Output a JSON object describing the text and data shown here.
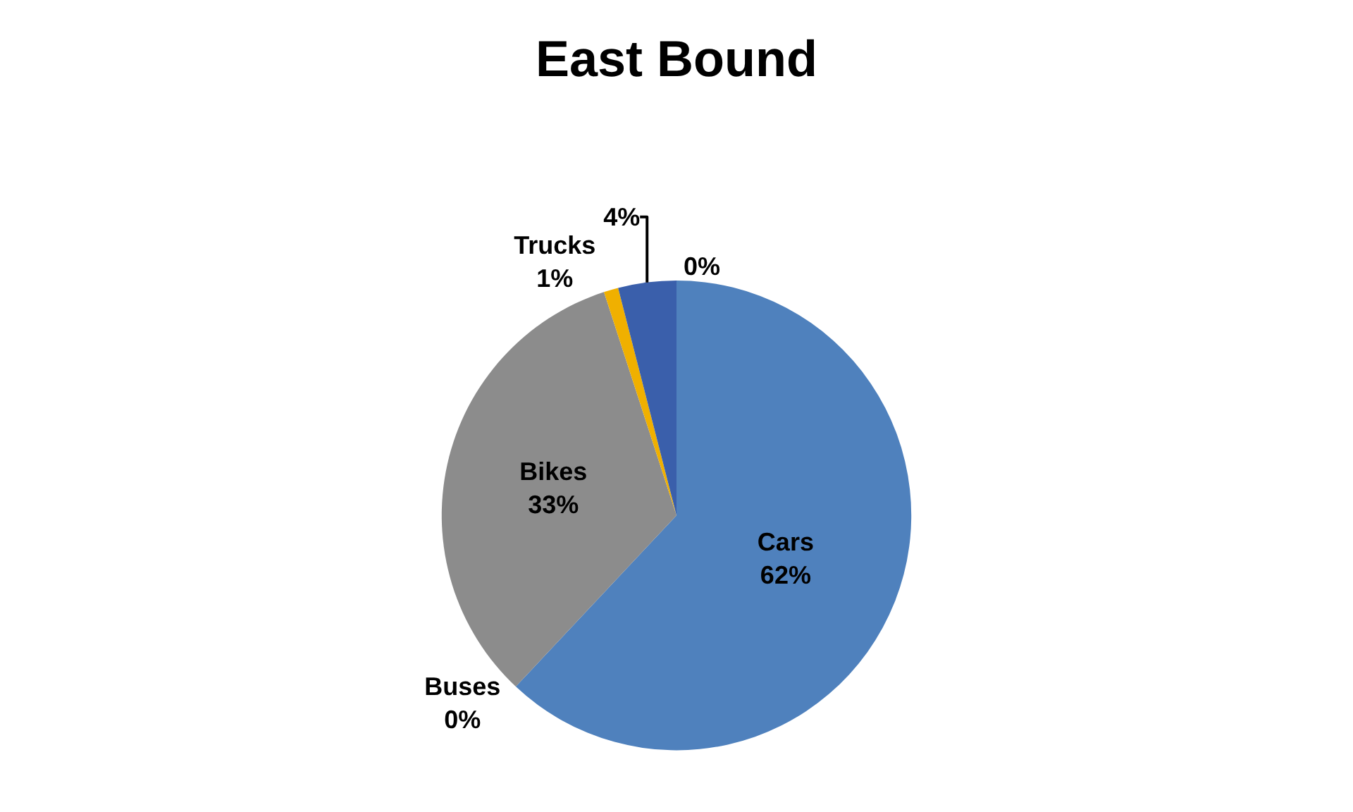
{
  "chart_data": {
    "type": "pie",
    "title": "East Bound",
    "categories": [
      "Cars",
      "Buses",
      "Bikes",
      "Trucks",
      null,
      null
    ],
    "values": [
      62,
      0,
      33,
      1,
      4,
      0
    ],
    "value_labels": [
      "62%",
      "0%",
      "33%",
      "1%",
      "4%",
      "0%"
    ],
    "colors": [
      "#4f81bd",
      "#e46c0a",
      "#8c8c8c",
      "#f0b000",
      "#3a5fab",
      "#4e9a3a"
    ],
    "legend": false
  }
}
